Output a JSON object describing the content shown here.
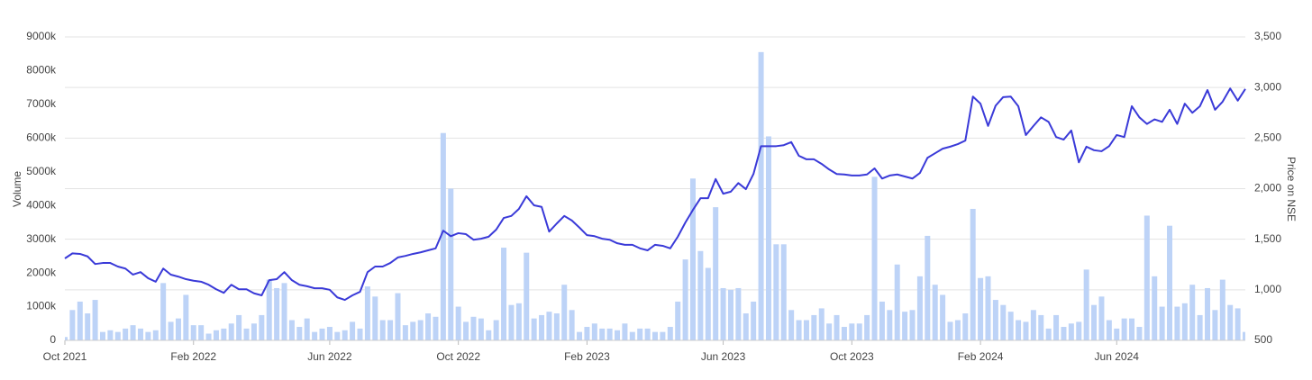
{
  "chart_data": {
    "type": "combo",
    "ylabel": "Volume",
    "y2label": "Price on NSE",
    "categories": [
      "Oct 2021",
      null,
      null,
      null,
      null,
      null,
      null,
      null,
      null,
      null,
      null,
      null,
      null,
      null,
      null,
      null,
      null,
      "Feb 2022",
      null,
      null,
      null,
      null,
      null,
      null,
      null,
      null,
      null,
      null,
      null,
      null,
      null,
      null,
      null,
      null,
      null,
      "Jun 2022",
      null,
      null,
      null,
      null,
      null,
      null,
      null,
      null,
      null,
      null,
      null,
      null,
      null,
      null,
      null,
      null,
      "Oct 2022",
      null,
      null,
      null,
      null,
      null,
      null,
      null,
      null,
      null,
      null,
      null,
      null,
      null,
      null,
      null,
      null,
      "Feb 2023",
      null,
      null,
      null,
      null,
      null,
      null,
      null,
      null,
      null,
      null,
      null,
      null,
      null,
      null,
      null,
      null,
      null,
      "Jun 2023",
      null,
      null,
      null,
      null,
      null,
      null,
      null,
      null,
      null,
      null,
      null,
      null,
      null,
      null,
      null,
      null,
      "Oct 2023",
      null,
      null,
      null,
      null,
      null,
      null,
      null,
      null,
      null,
      null,
      null,
      null,
      null,
      null,
      null,
      null,
      "Feb 2024",
      null,
      null,
      null,
      null,
      null,
      null,
      null,
      null,
      null,
      null,
      null,
      null,
      null,
      null,
      null,
      null,
      null,
      "Jun 2024",
      null,
      null,
      null,
      null,
      null,
      null,
      null,
      null,
      null,
      null,
      null,
      null,
      null,
      null,
      null,
      null,
      null
    ],
    "series": [
      {
        "type": "bar",
        "color": "#bdd3f7",
        "values": [
          100000,
          900000,
          1150000,
          800000,
          1200000,
          250000,
          300000,
          250000,
          350000,
          450000,
          350000,
          250000,
          300000,
          1700000,
          550000,
          650000,
          1350000,
          450000,
          450000,
          200000,
          300000,
          350000,
          500000,
          750000,
          350000,
          500000,
          750000,
          1800000,
          1550000,
          1700000,
          600000,
          400000,
          650000,
          250000,
          350000,
          400000,
          250000,
          300000,
          550000,
          350000,
          1600000,
          1300000,
          600000,
          600000,
          1400000,
          450000,
          550000,
          600000,
          800000,
          700000,
          6150000,
          4500000,
          1000000,
          550000,
          700000,
          650000,
          300000,
          600000,
          2750000,
          1050000,
          1100000,
          2600000,
          650000,
          750000,
          850000,
          800000,
          1650000,
          900000,
          250000,
          400000,
          500000,
          350000,
          350000,
          300000,
          500000,
          250000,
          350000,
          350000,
          250000,
          250000,
          400000,
          1150000,
          2400000,
          4800000,
          2650000,
          2150000,
          3950000,
          1550000,
          1500000,
          1550000,
          800000,
          1150000,
          8550000,
          6050000,
          2850000,
          2850000,
          900000,
          600000,
          600000,
          750000,
          950000,
          500000,
          750000,
          400000,
          500000,
          500000,
          750000,
          4850000,
          1150000,
          900000,
          2250000,
          850000,
          900000,
          1900000,
          3100000,
          1650000,
          1350000,
          550000,
          600000,
          800000,
          3900000,
          1850000,
          1900000,
          1200000,
          1050000,
          850000,
          600000,
          550000,
          900000,
          750000,
          350000,
          750000,
          400000,
          500000,
          550000,
          2100000,
          1050000,
          1300000,
          600000,
          350000,
          650000,
          650000,
          400000,
          3700000,
          1900000,
          1000000,
          3400000,
          1000000,
          1100000,
          1650000,
          750000,
          1550000,
          900000,
          1800000,
          1050000,
          950000,
          250000
        ]
      },
      {
        "type": "line",
        "axis": "y2",
        "color": "#3a3ad8",
        "values": [
          1310,
          1360,
          1355,
          1330,
          1255,
          1265,
          1265,
          1230,
          1210,
          1150,
          1175,
          1115,
          1080,
          1210,
          1150,
          1130,
          1105,
          1090,
          1080,
          1050,
          1005,
          970,
          1050,
          1005,
          1005,
          965,
          945,
          1095,
          1105,
          1175,
          1095,
          1050,
          1035,
          1015,
          1015,
          1000,
          925,
          900,
          945,
          980,
          1175,
          1230,
          1230,
          1265,
          1320,
          1335,
          1355,
          1370,
          1390,
          1410,
          1585,
          1530,
          1560,
          1550,
          1495,
          1505,
          1525,
          1595,
          1710,
          1730,
          1800,
          1925,
          1835,
          1820,
          1575,
          1655,
          1730,
          1685,
          1615,
          1540,
          1530,
          1505,
          1495,
          1460,
          1445,
          1445,
          1410,
          1390,
          1445,
          1435,
          1410,
          1525,
          1665,
          1790,
          1905,
          1905,
          2095,
          1950,
          1970,
          2055,
          1995,
          2145,
          2420,
          2420,
          2420,
          2430,
          2460,
          2325,
          2290,
          2290,
          2245,
          2190,
          2145,
          2140,
          2130,
          2130,
          2140,
          2200,
          2100,
          2130,
          2140,
          2120,
          2100,
          2155,
          2305,
          2350,
          2395,
          2415,
          2440,
          2475,
          2910,
          2840,
          2620,
          2820,
          2905,
          2910,
          2815,
          2530,
          2620,
          2705,
          2660,
          2510,
          2485,
          2575,
          2260,
          2415,
          2380,
          2370,
          2420,
          2530,
          2510,
          2815,
          2705,
          2640,
          2685,
          2660,
          2780,
          2640,
          2840,
          2750,
          2815,
          2975,
          2780,
          2860,
          2990,
          2870,
          2985
        ]
      }
    ],
    "ylim": [
      0,
      9000000
    ],
    "yticks": [
      {
        "value": 0,
        "label": "0"
      },
      {
        "value": 1000000,
        "label": "1000k"
      },
      {
        "value": 2000000,
        "label": "2000k"
      },
      {
        "value": 3000000,
        "label": "3000k"
      },
      {
        "value": 4000000,
        "label": "4000k"
      },
      {
        "value": 5000000,
        "label": "5000k"
      },
      {
        "value": 6000000,
        "label": "6000k"
      },
      {
        "value": 7000000,
        "label": "7000k"
      },
      {
        "value": 8000000,
        "label": "8000k"
      },
      {
        "value": 9000000,
        "label": "9000k"
      }
    ],
    "y2lim": [
      500,
      3500
    ],
    "y2ticks": [
      500,
      {
        "value": 1000,
        "label": "1,000"
      },
      {
        "value": 1500,
        "label": "1,500"
      },
      {
        "value": 2000,
        "label": "2,000"
      },
      {
        "value": 2500,
        "label": "2,500"
      },
      {
        "value": 3000,
        "label": "3,000"
      },
      {
        "value": 3500,
        "label": "3,500"
      }
    ],
    "grid": "y2"
  }
}
